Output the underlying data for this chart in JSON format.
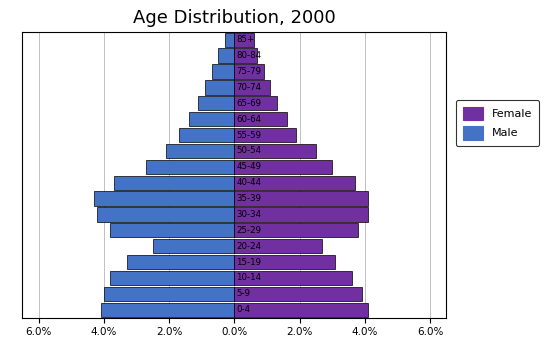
{
  "title": "Age Distribution, 2000",
  "age_groups": [
    "0-4",
    "5-9",
    "10-14",
    "15-19",
    "20-24",
    "25-29",
    "30-34",
    "35-39",
    "40-44",
    "45-49",
    "50-54",
    "55-59",
    "60-64",
    "65-69",
    "70-74",
    "75-79",
    "80-84",
    "85+"
  ],
  "male": [
    4.1,
    4.0,
    3.8,
    3.3,
    2.5,
    3.8,
    4.2,
    4.3,
    3.7,
    2.7,
    2.1,
    1.7,
    1.4,
    1.1,
    0.9,
    0.7,
    0.5,
    0.3
  ],
  "female": [
    4.1,
    3.9,
    3.6,
    3.1,
    2.7,
    3.8,
    4.1,
    4.1,
    3.7,
    3.0,
    2.5,
    1.9,
    1.6,
    1.3,
    1.1,
    0.9,
    0.7,
    0.6
  ],
  "male_color": "#4472C4",
  "female_color": "#7030A0",
  "xlim": 6.5,
  "bar_height": 0.9,
  "edgecolor": "#000000",
  "background_color": "#ffffff",
  "legend_female": "Female",
  "legend_male": "Male",
  "title_fontsize": 13
}
